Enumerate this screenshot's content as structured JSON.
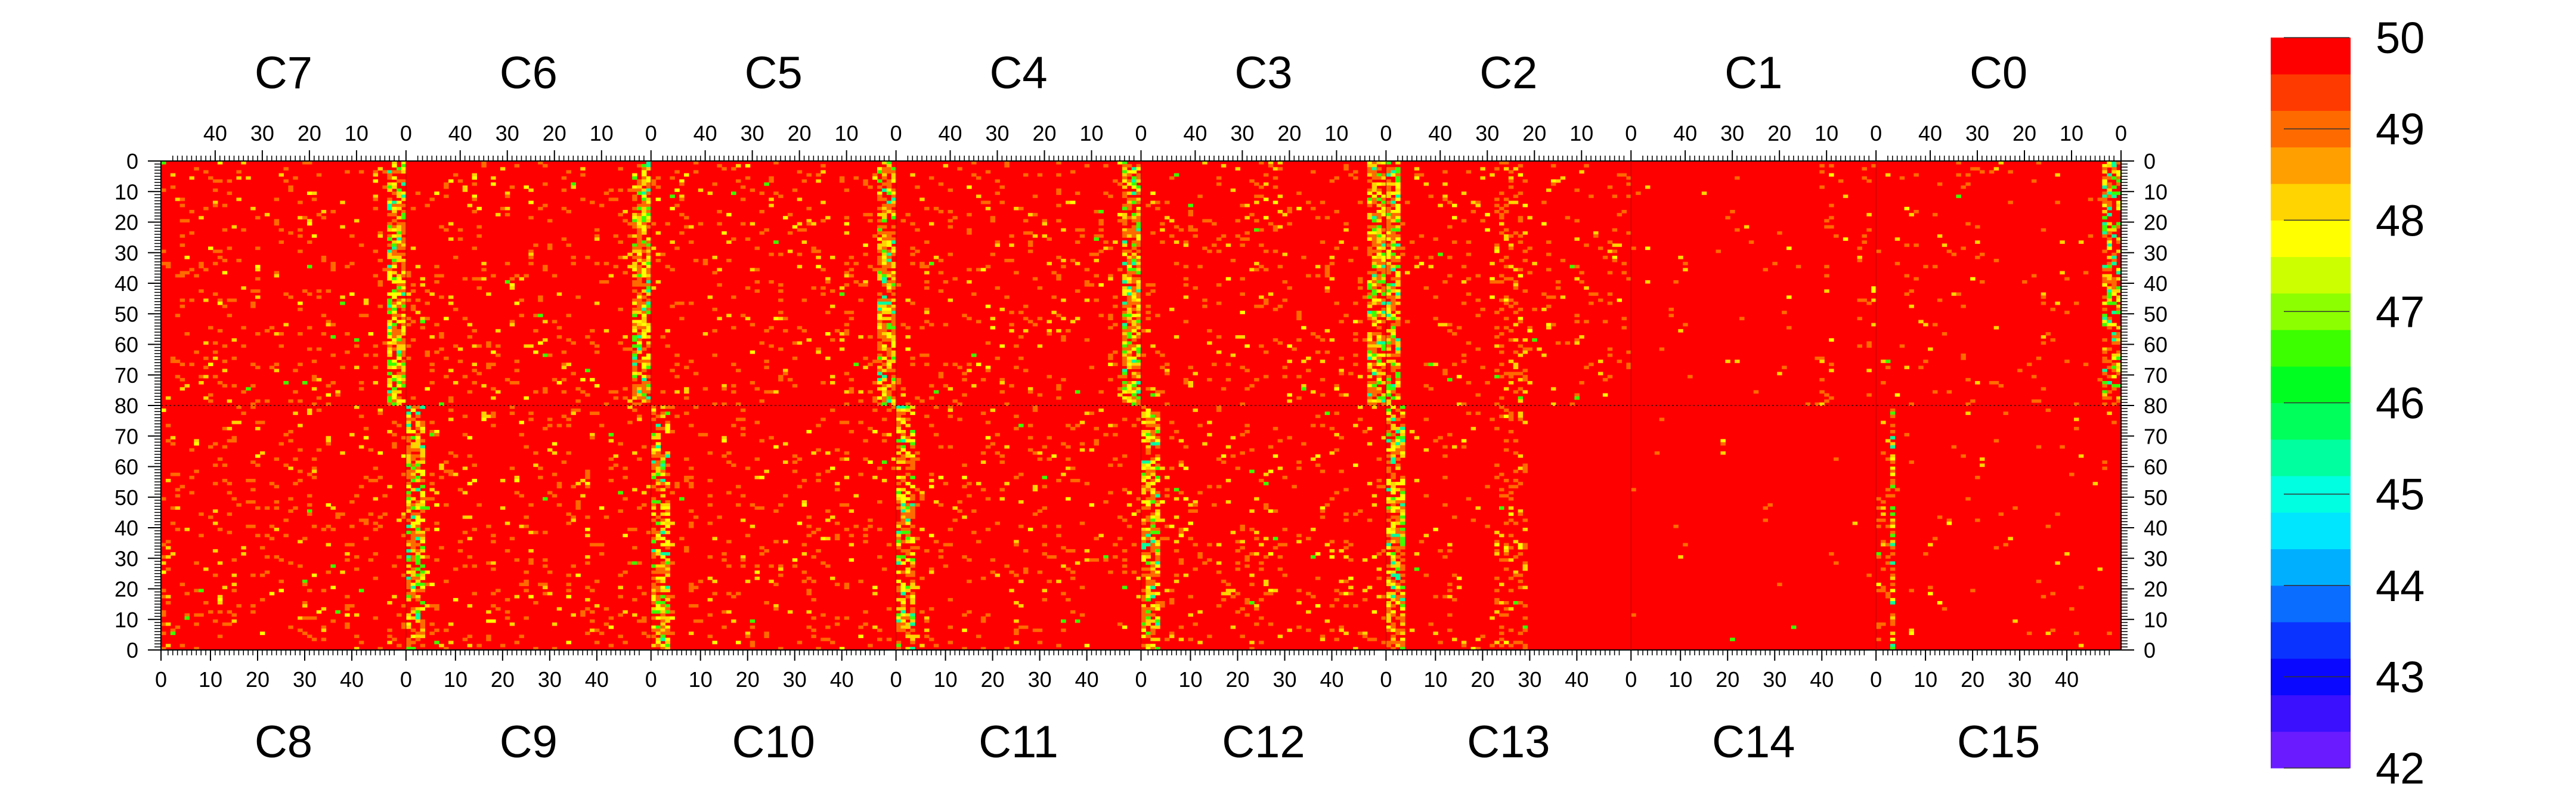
{
  "chart_data": {
    "type": "heatmap",
    "title": "",
    "xlabel": "",
    "ylabel": "",
    "colorbar": {
      "min": 42,
      "max": 50,
      "tick_labels": [
        "50",
        "49",
        "48",
        "47",
        "46",
        "45",
        "44",
        "43",
        "42"
      ],
      "palette": [
        "#6a1bff",
        "#3a10ff",
        "#0b08ff",
        "#0a33ff",
        "#0a6dff",
        "#00b0ff",
        "#00e6ff",
        "#00ffe0",
        "#00ff9e",
        "#00ff5a",
        "#00ff20",
        "#3cff00",
        "#8cff00",
        "#ccff00",
        "#ffff00",
        "#ffd400",
        "#ff9f00",
        "#ff6a00",
        "#ff3a00",
        "#ff0000"
      ]
    },
    "top_row": {
      "chips": [
        "C7",
        "C6",
        "C5",
        "C4",
        "C3",
        "C2",
        "C1",
        "C0"
      ],
      "x_tick_labels": [
        "40",
        "30",
        "20",
        "10",
        "0"
      ],
      "y_tick_labels": [
        "0",
        "10",
        "20",
        "30",
        "40",
        "50",
        "60",
        "70",
        "80"
      ]
    },
    "bottom_row": {
      "chips": [
        "C8",
        "C9",
        "C10",
        "C11",
        "C12",
        "C13",
        "C14",
        "C15"
      ],
      "x_tick_labels": [
        "0",
        "10",
        "20",
        "30",
        "40"
      ],
      "y_tick_labels": [
        "70",
        "60",
        "50",
        "40",
        "30",
        "20",
        "10",
        "0"
      ]
    },
    "columns_per_chip": 52,
    "rows_per_half": 80,
    "value_range": [
      42,
      50
    ],
    "dominant_value": 50,
    "notes_visible": [
      "Most pixels at 50",
      "Lower values concentrated near chip column 0 boundaries"
    ]
  }
}
